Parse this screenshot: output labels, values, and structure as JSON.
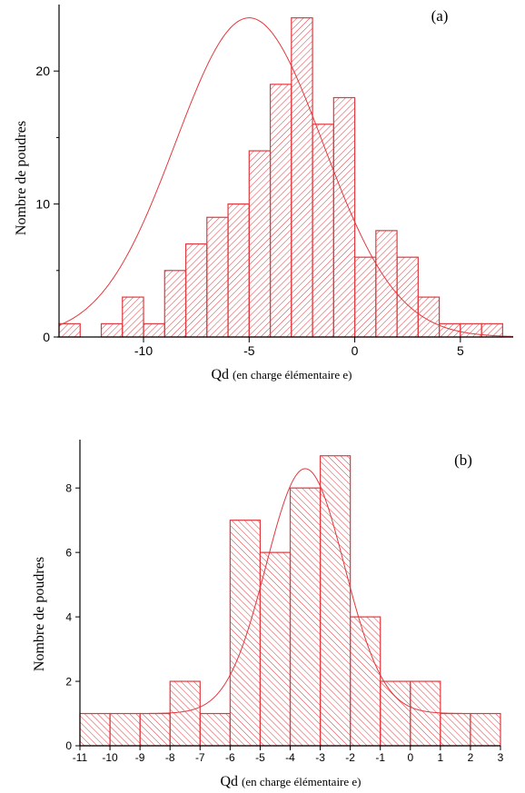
{
  "charts": [
    {
      "id": "a",
      "panel_label": "(a)",
      "ylabel": "Nombre de poudres",
      "xlabel_main": "Qd",
      "xlabel_sub": "(en charge élémentaire e)",
      "colors": {
        "bar": "#e0393e",
        "fit": "#e0393e",
        "axis": "#000000"
      }
    },
    {
      "id": "b",
      "panel_label": "(b)",
      "ylabel": "Nombre de poudres",
      "xlabel_main": "Qd",
      "xlabel_sub": "(en charge élémentaire e)",
      "colors": {
        "bar": "#e0393e",
        "fit": "#e0393e",
        "axis": "#000000"
      }
    }
  ],
  "chart_data": [
    {
      "type": "bar",
      "histogram": true,
      "bin_width": 1,
      "bin_starts": [
        -14,
        -13,
        -12,
        -11,
        -10,
        -9,
        -8,
        -7,
        -6,
        -5,
        -4,
        -3,
        -2,
        -1,
        0,
        1,
        2,
        3,
        4,
        5,
        6
      ],
      "values": [
        1,
        0,
        1,
        3,
        1,
        5,
        7,
        9,
        10,
        14,
        19,
        24,
        16,
        18,
        6,
        8,
        6,
        3,
        1,
        1,
        1
      ],
      "xlim": [
        -14,
        7.5
      ],
      "ylim": [
        0,
        25
      ],
      "xticks": [
        -10,
        -5,
        0,
        5
      ],
      "yticks": [
        0,
        10,
        20
      ],
      "fit": {
        "type": "gaussian",
        "peak": 24,
        "center": -5,
        "sigma": 3.5
      }
    },
    {
      "type": "bar",
      "histogram": true,
      "bin_width": 1,
      "bin_starts": [
        -11,
        -10,
        -9,
        -8,
        -7,
        -6,
        -5,
        -4,
        -3,
        -2,
        -1,
        0,
        1,
        2
      ],
      "values": [
        1,
        1,
        1,
        2,
        1,
        7,
        6,
        8,
        9,
        4,
        2,
        2,
        1,
        1
      ],
      "xlim": [
        -11,
        3
      ],
      "ylim": [
        0,
        9.5
      ],
      "xticks": [
        -11,
        -10,
        -9,
        -8,
        -7,
        -6,
        -5,
        -4,
        -3,
        -2,
        -1,
        0,
        1,
        2,
        3
      ],
      "yticks": [
        0,
        2,
        4,
        6,
        8
      ],
      "fit": {
        "type": "gaussian",
        "baseline": 1,
        "peak": 8.6,
        "center": -3.5,
        "sigma": 1.3
      }
    }
  ]
}
